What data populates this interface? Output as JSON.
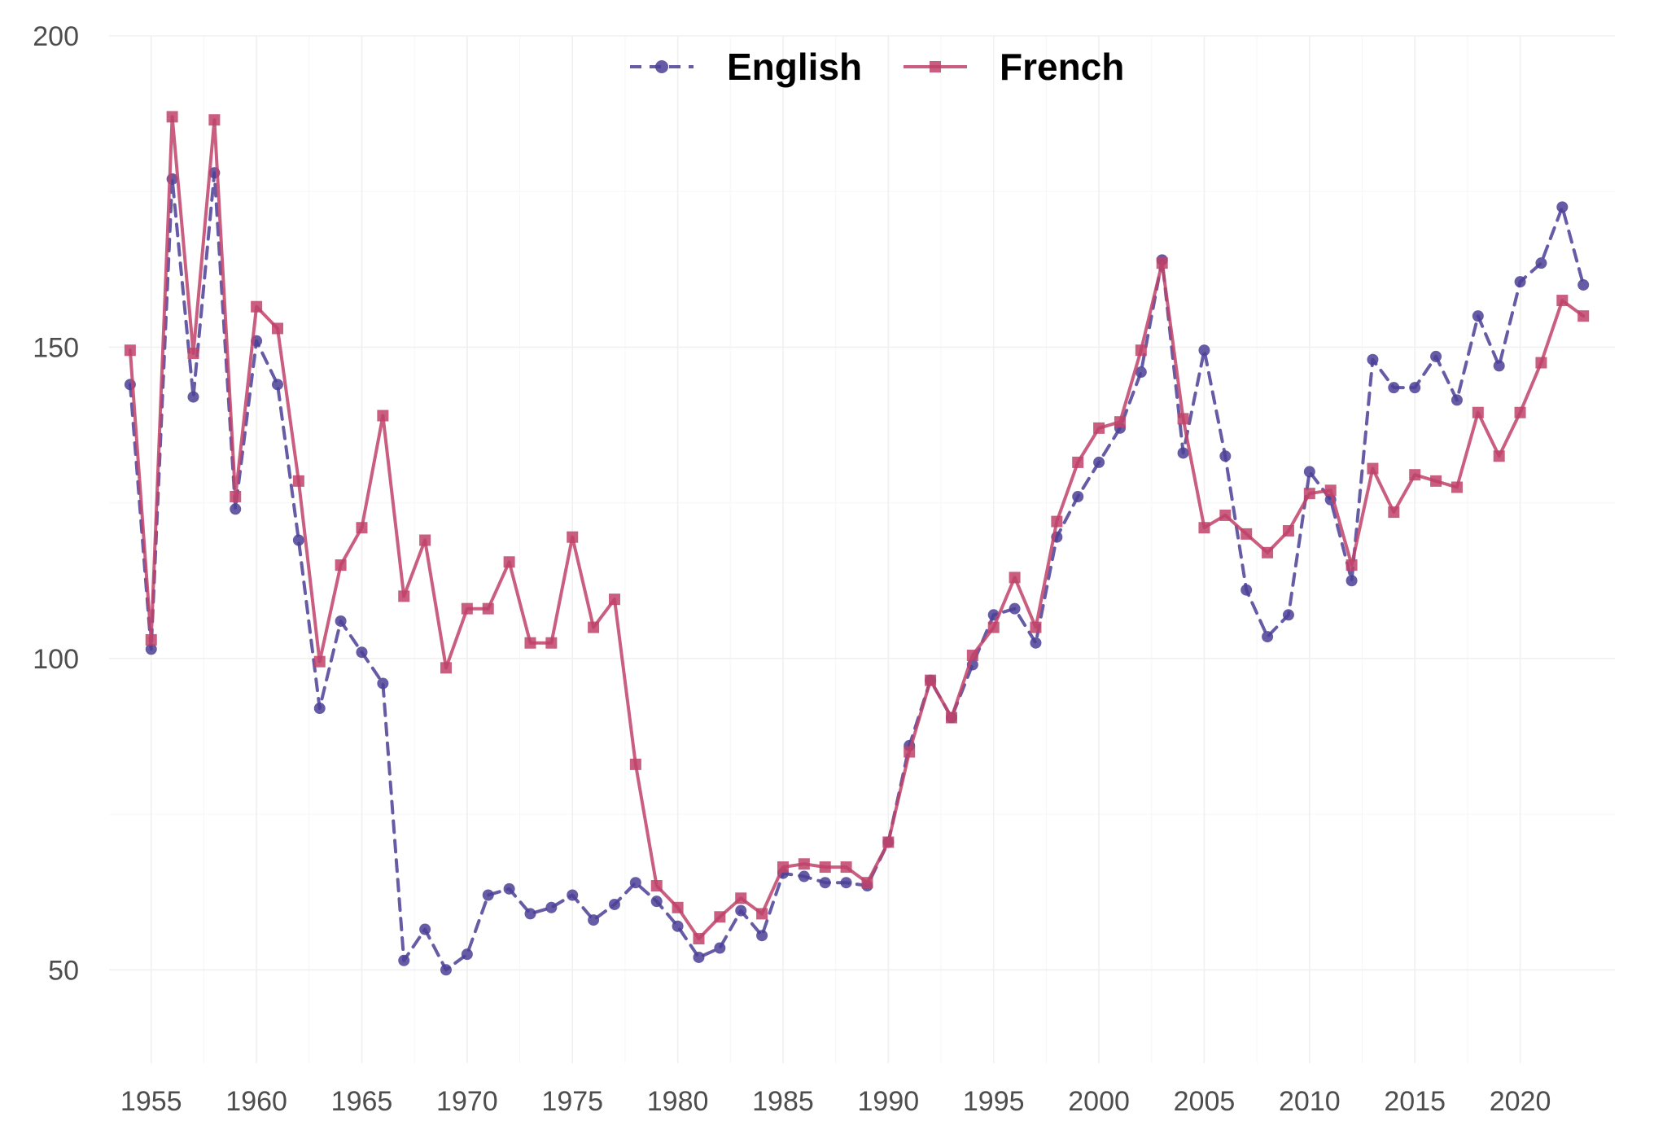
{
  "chart_data": {
    "type": "line",
    "title": "",
    "xlabel": "",
    "ylabel": "",
    "xlim": [
      1953,
      2024.5
    ],
    "ylim": [
      35,
      200
    ],
    "x_ticks": [
      1955,
      1960,
      1965,
      1970,
      1975,
      1980,
      1985,
      1990,
      1995,
      2000,
      2005,
      2010,
      2015,
      2020
    ],
    "y_ticks": [
      50,
      100,
      150,
      200
    ],
    "grid": true,
    "legend_position": "top",
    "x": [
      1954,
      1955,
      1956,
      1957,
      1958,
      1959,
      1960,
      1961,
      1962,
      1963,
      1964,
      1965,
      1966,
      1967,
      1968,
      1969,
      1970,
      1971,
      1972,
      1973,
      1974,
      1975,
      1976,
      1977,
      1978,
      1979,
      1980,
      1981,
      1982,
      1983,
      1984,
      1985,
      1986,
      1987,
      1988,
      1989,
      1990,
      1991,
      1992,
      1993,
      1994,
      1995,
      1996,
      1997,
      1998,
      1999,
      2000,
      2001,
      2002,
      2003,
      2004,
      2005,
      2006,
      2007,
      2008,
      2009,
      2010,
      2011,
      2012,
      2013,
      2014,
      2015,
      2016,
      2017,
      2018,
      2019,
      2020,
      2021,
      2022,
      2023
    ],
    "series": [
      {
        "name": "English",
        "color": "#4b3f96",
        "line_style": "dashed",
        "marker": "circle",
        "values": [
          144,
          101.5,
          177,
          142,
          178,
          124,
          151,
          144,
          119,
          92,
          106,
          101,
          96,
          51.5,
          56.5,
          50,
          52.5,
          62,
          63,
          59,
          60,
          62,
          58,
          60.5,
          64,
          61,
          57,
          52,
          53.5,
          59.5,
          55.5,
          65.5,
          65,
          64,
          64,
          63.5,
          70.5,
          86,
          96.5,
          90.5,
          99,
          107,
          108,
          102.5,
          119.5,
          126,
          131.5,
          137,
          146,
          164,
          133,
          149.5,
          132.5,
          111,
          103.5,
          107,
          130,
          125.5,
          112.5,
          148,
          143.5,
          143.5,
          148.5,
          141.5,
          155,
          147,
          160.5,
          163.5,
          172.5,
          160
        ]
      },
      {
        "name": "French",
        "color": "#c0426a",
        "line_style": "solid",
        "marker": "square",
        "values": [
          149.5,
          103,
          187,
          149,
          186.5,
          126,
          156.5,
          153,
          128.5,
          99.5,
          115,
          121,
          139,
          110,
          119,
          98.5,
          108,
          108,
          115.5,
          102.5,
          102.5,
          119.5,
          105,
          109.5,
          83,
          63.5,
          60,
          55,
          58.5,
          61.5,
          59,
          66.5,
          67,
          66.5,
          66.5,
          64,
          70.5,
          85,
          96.5,
          90.5,
          100.5,
          105,
          113,
          105,
          122,
          131.5,
          137,
          138,
          149.5,
          163.5,
          138.5,
          121,
          123,
          120,
          117,
          120.5,
          126.5,
          127,
          115,
          130.5,
          123.5,
          129.5,
          128.5,
          127.5,
          139.5,
          132.5,
          139.5,
          147.5,
          157.5,
          155
        ]
      }
    ]
  }
}
